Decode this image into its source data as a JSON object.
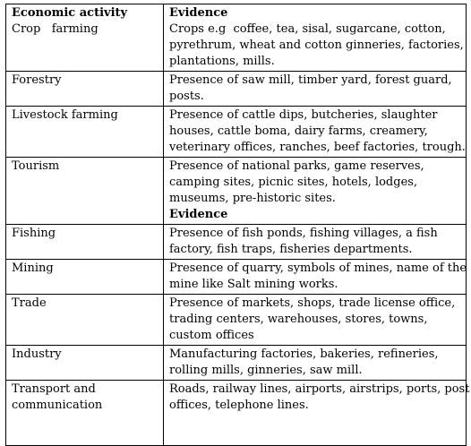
{
  "table": {
    "header": {
      "activity": "Economic activity",
      "evidence": "Evidence"
    },
    "rows": [
      {
        "activity": [
          "Crop   farming"
        ],
        "evidence": [
          "Crops e.g  coffee, tea, sisal, sugarcane, cotton,",
          "pyrethrum, wheat and cotton ginneries, factories,",
          "plantations, mills."
        ]
      },
      {
        "activity": [
          "Forestry"
        ],
        "evidence": [
          "Presence of saw mill, timber yard, forest guard,",
          "posts."
        ]
      },
      {
        "activity": [
          "Livestock farming"
        ],
        "evidence": [
          "Presence of cattle dips, butcheries, slaughter",
          "houses, cattle boma, dairy farms, creamery,",
          "veterinary offices, ranches, beef factories, trough."
        ]
      },
      {
        "activity": [
          "Tourism"
        ],
        "evidence": [
          "Presence of national parks, game reserves,",
          "camping sites, picnic sites, hotels, lodges,",
          "museums, pre-historic sites."
        ],
        "evidence_trailing_header": "Evidence"
      },
      {
        "activity": [
          "Fishing"
        ],
        "evidence": [
          "Presence of fish ponds, fishing villages, a fish",
          "factory, fish traps, fisheries departments."
        ]
      },
      {
        "activity": [
          "Mining"
        ],
        "evidence": [
          "Presence of quarry, symbols of mines, name of the",
          "mine like Salt mining works."
        ]
      },
      {
        "activity": [
          "Trade"
        ],
        "evidence": [
          "Presence of markets, shops, trade license office,",
          "trading centers, warehouses, stores, towns,",
          "custom offices"
        ]
      },
      {
        "activity": [
          "Industry"
        ],
        "evidence": [
          "Manufacturing factories, bakeries, refineries,",
          "rolling mills, ginneries, saw mill."
        ]
      },
      {
        "activity": [
          "Transport and",
          "communication"
        ],
        "evidence": [
          "Roads, railway lines, airports, airstrips, ports, post",
          "offices, telephone lines."
        ]
      }
    ]
  }
}
